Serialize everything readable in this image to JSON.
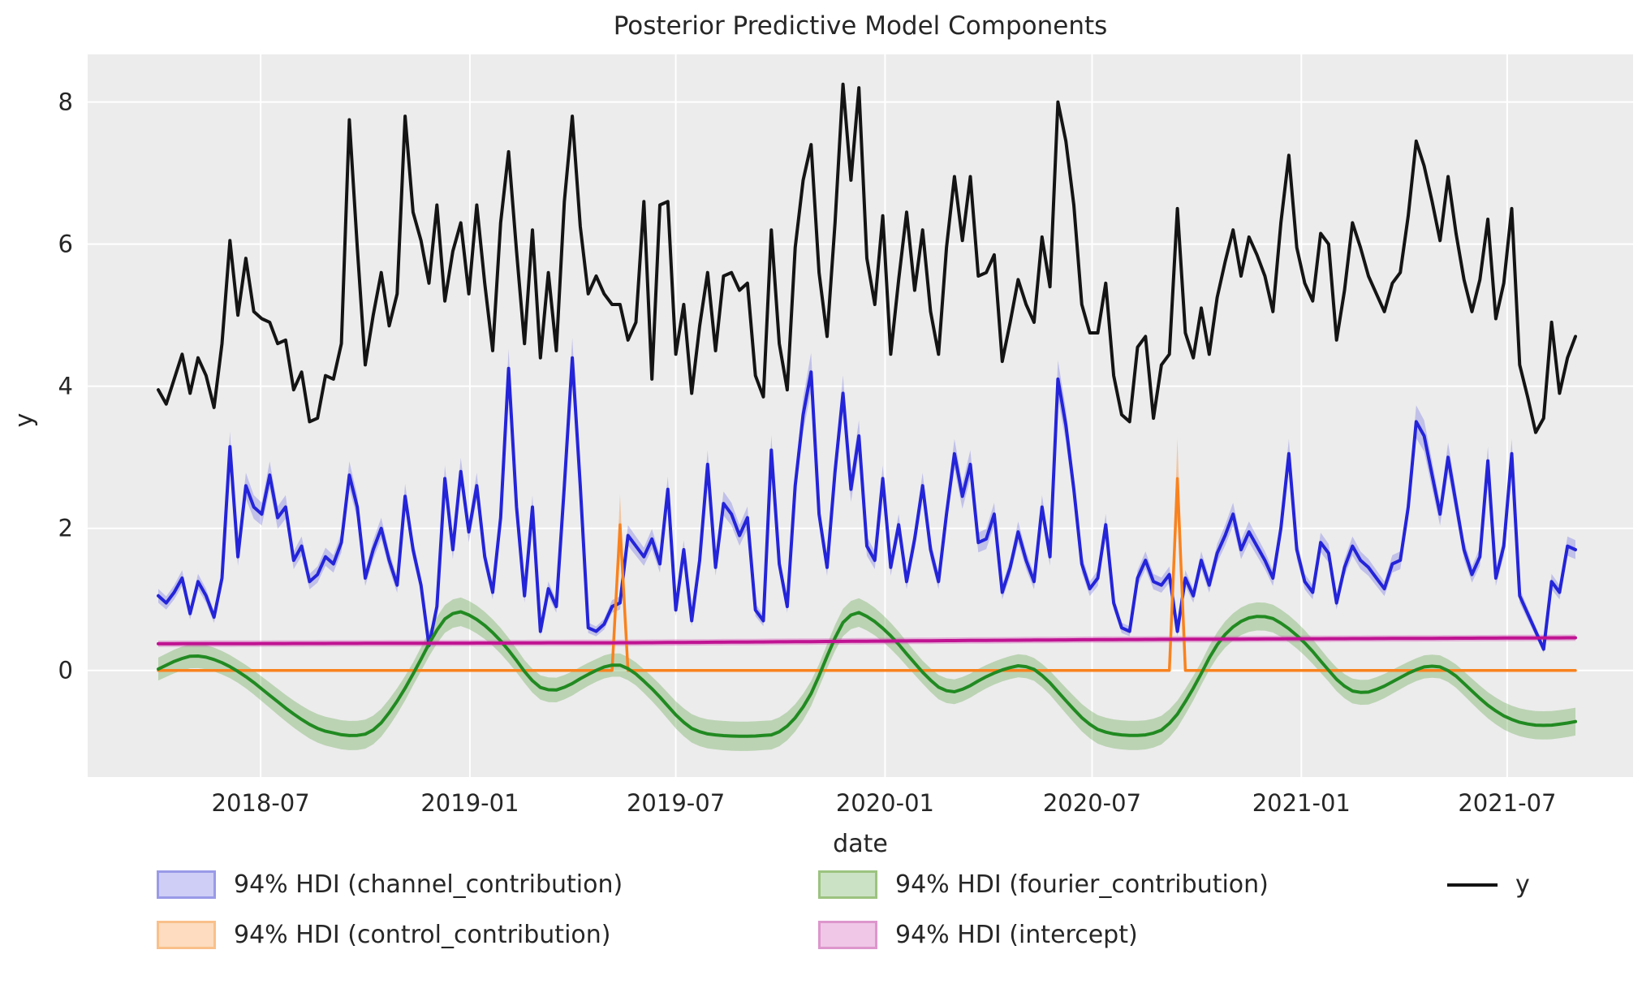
{
  "title": "Posterior Predictive Model Components",
  "axes": {
    "xlabel": "date",
    "ylabel": "y",
    "start_date": "2018-04-02",
    "n_weeks": 179,
    "x_tick_labels": [
      "2018-07",
      "2019-01",
      "2019-07",
      "2020-01",
      "2020-07",
      "2021-01",
      "2021-07"
    ],
    "x_tick_day_offsets": [
      90,
      274,
      455,
      639,
      821,
      1005,
      1186
    ],
    "y_ticks": [
      0,
      2,
      4,
      6,
      8
    ],
    "ylim": [
      -1.5,
      8.67
    ],
    "grid": true
  },
  "colors": {
    "plot_bg": "#ececec",
    "grid": "#ffffff",
    "text": "#262626",
    "y_line": "#141414",
    "channel_line": "#2424d9",
    "channel_band": "rgba(80,80,225,0.28)",
    "control_line": "#f9821e",
    "control_band": "rgba(249,130,30,0.35)",
    "fourier_line": "#218a21",
    "fourier_band": "rgba(85,160,60,0.32)",
    "intercept_line": "#c01392",
    "intercept_band": "rgba(205,70,175,0.35)"
  },
  "legend": {
    "items": [
      {
        "label": "94% HDI (channel_contribution)",
        "type": "patch",
        "fill": "rgba(80,80,225,0.28)",
        "edge": "#9a9ae8",
        "col": 0,
        "row": 0
      },
      {
        "label": "94% HDI (control_contribution)",
        "type": "patch",
        "fill": "rgba(249,130,30,0.28)",
        "edge": "#f9c08a",
        "col": 0,
        "row": 1
      },
      {
        "label": "94% HDI (fourier_contribution)",
        "type": "patch",
        "fill": "rgba(85,160,60,0.3)",
        "edge": "#9cc380",
        "col": 1,
        "row": 0
      },
      {
        "label": "94% HDI (intercept)",
        "type": "patch",
        "fill": "rgba(205,70,175,0.3)",
        "edge": "#dd96cc",
        "col": 1,
        "row": 1
      },
      {
        "label": "y",
        "type": "line",
        "stroke": "#141414",
        "col": 2,
        "row": 0
      }
    ]
  },
  "chart_data": {
    "type": "line",
    "title": "Posterior Predictive Model Components",
    "xlabel": "date",
    "ylabel": "y",
    "x_unit": "weeks since 2018-04-02",
    "series": [
      {
        "name": "y",
        "kind": "weekly",
        "color_key": "y_line",
        "line_width": 4,
        "values": [
          3.95,
          3.75,
          4.1,
          4.45,
          3.9,
          4.4,
          4.15,
          3.7,
          4.6,
          6.05,
          5.0,
          5.8,
          5.05,
          4.95,
          4.9,
          4.6,
          4.65,
          3.95,
          4.2,
          3.5,
          3.55,
          4.15,
          4.1,
          4.6,
          7.75,
          5.95,
          4.3,
          5.0,
          5.6,
          4.85,
          5.3,
          7.8,
          6.45,
          6.05,
          5.45,
          6.55,
          5.2,
          5.9,
          6.3,
          5.3,
          6.55,
          5.45,
          4.5,
          6.3,
          7.3,
          5.9,
          4.6,
          6.2,
          4.4,
          5.6,
          4.5,
          6.6,
          7.8,
          6.25,
          5.3,
          5.55,
          5.3,
          5.15,
          5.15,
          4.65,
          4.9,
          6.6,
          4.1,
          6.55,
          6.6,
          4.45,
          5.15,
          3.9,
          4.85,
          5.6,
          4.5,
          5.55,
          5.6,
          5.35,
          5.45,
          4.15,
          3.85,
          6.2,
          4.6,
          3.95,
          5.95,
          6.9,
          7.4,
          5.6,
          4.7,
          6.3,
          8.25,
          6.9,
          8.2,
          5.8,
          5.15,
          6.4,
          4.45,
          5.5,
          6.45,
          5.35,
          6.2,
          5.05,
          4.45,
          5.95,
          6.95,
          6.05,
          6.95,
          5.55,
          5.6,
          5.85,
          4.35,
          4.9,
          5.5,
          5.15,
          4.9,
          6.1,
          5.4,
          8.0,
          7.45,
          6.55,
          5.15,
          4.75,
          4.75,
          5.45,
          4.15,
          3.6,
          3.5,
          4.55,
          4.7,
          3.55,
          4.3,
          4.45,
          6.5,
          4.75,
          4.4,
          5.1,
          4.45,
          5.25,
          5.75,
          6.2,
          5.55,
          6.1,
          5.85,
          5.55,
          5.05,
          6.3,
          7.25,
          5.95,
          5.45,
          5.2,
          6.15,
          6.0,
          4.65,
          5.35,
          6.3,
          5.95,
          5.55,
          5.3,
          5.05,
          5.45,
          5.6,
          6.4,
          7.45,
          7.1,
          6.6,
          6.05,
          6.95,
          6.15,
          5.5,
          5.05,
          5.5,
          6.35,
          4.95,
          5.45,
          6.5,
          4.3,
          3.85,
          3.35,
          3.55,
          4.9,
          3.9,
          4.4,
          4.7
        ]
      },
      {
        "name": "channel_contribution",
        "kind": "weekly",
        "color_key": "channel_line",
        "band_key": "channel_band",
        "line_width": 4,
        "hdi_base": 0.04,
        "hdi_frac": 0.055,
        "values": [
          1.05,
          0.95,
          1.1,
          1.3,
          0.8,
          1.25,
          1.05,
          0.75,
          1.3,
          3.15,
          1.6,
          2.6,
          2.3,
          2.2,
          2.75,
          2.15,
          2.3,
          1.55,
          1.75,
          1.25,
          1.35,
          1.6,
          1.5,
          1.8,
          2.75,
          2.3,
          1.3,
          1.7,
          2.0,
          1.55,
          1.2,
          2.45,
          1.7,
          1.2,
          0.35,
          0.9,
          2.7,
          1.7,
          2.8,
          1.95,
          2.6,
          1.6,
          1.1,
          2.15,
          4.25,
          2.3,
          1.05,
          2.3,
          0.55,
          1.15,
          0.9,
          2.6,
          4.4,
          2.6,
          0.6,
          0.55,
          0.65,
          0.9,
          0.95,
          1.9,
          1.75,
          1.6,
          1.85,
          1.5,
          2.55,
          0.85,
          1.7,
          0.7,
          1.55,
          2.9,
          1.45,
          2.35,
          2.2,
          1.9,
          2.15,
          0.85,
          0.7,
          3.1,
          1.5,
          0.9,
          2.6,
          3.6,
          4.2,
          2.2,
          1.45,
          2.8,
          3.9,
          2.55,
          3.3,
          1.75,
          1.55,
          2.7,
          1.45,
          2.05,
          1.25,
          1.85,
          2.6,
          1.7,
          1.25,
          2.2,
          3.05,
          2.45,
          2.9,
          1.8,
          1.85,
          2.2,
          1.1,
          1.45,
          1.95,
          1.55,
          1.25,
          2.3,
          1.6,
          4.1,
          3.45,
          2.55,
          1.5,
          1.15,
          1.3,
          2.05,
          0.95,
          0.6,
          0.55,
          1.3,
          1.55,
          1.25,
          1.2,
          1.35,
          0.55,
          1.3,
          1.05,
          1.55,
          1.2,
          1.65,
          1.9,
          2.2,
          1.7,
          1.95,
          1.75,
          1.55,
          1.3,
          2.0,
          3.05,
          1.7,
          1.25,
          1.1,
          1.8,
          1.65,
          0.95,
          1.45,
          1.75,
          1.55,
          1.45,
          1.3,
          1.15,
          1.5,
          1.55,
          2.3,
          3.5,
          3.3,
          2.75,
          2.2,
          3.0,
          2.35,
          1.7,
          1.35,
          1.6,
          2.95,
          1.3,
          1.75,
          3.05,
          1.05,
          0.8,
          0.55,
          0.3,
          1.25,
          1.1,
          1.75,
          1.7
        ]
      },
      {
        "name": "control_contribution",
        "kind": "knots",
        "color_key": "control_line",
        "band_key": "control_band",
        "line_width": 3.5,
        "hdi_base": 0.0,
        "hdi_frac": 0.21,
        "smooth": false,
        "knots": [
          [
            0,
            0
          ],
          [
            57,
            0
          ],
          [
            58,
            2.05
          ],
          [
            59,
            0
          ],
          [
            127,
            0
          ],
          [
            128,
            2.7
          ],
          [
            129,
            0
          ],
          [
            178,
            0
          ]
        ],
        "events": [
          {
            "date": "2019-05-13",
            "week": 58,
            "mean": 2.05,
            "hdi": [
              1.65,
              2.55
            ]
          },
          {
            "date": "2020-09-14",
            "week": 128,
            "mean": 2.7,
            "hdi": [
              2.15,
              3.3
            ]
          }
        ]
      },
      {
        "name": "fourier_contribution",
        "kind": "knots",
        "color_key": "fourier_line",
        "band_key": "fourier_band",
        "line_width": 4,
        "hdi_base": 0.16,
        "hdi_frac": 0.05,
        "smooth": true,
        "knots": [
          [
            0,
            0.02
          ],
          [
            3,
            0.18
          ],
          [
            5,
            0.22
          ],
          [
            8,
            0.12
          ],
          [
            11,
            -0.08
          ],
          [
            14,
            -0.35
          ],
          [
            17,
            -0.62
          ],
          [
            20,
            -0.83
          ],
          [
            24,
            -0.93
          ],
          [
            27,
            -0.88
          ],
          [
            30,
            -0.45
          ],
          [
            33,
            0.15
          ],
          [
            35,
            0.6
          ],
          [
            37,
            0.85
          ],
          [
            39,
            0.8
          ],
          [
            42,
            0.55
          ],
          [
            45,
            0.15
          ],
          [
            47,
            -0.18
          ],
          [
            49,
            -0.3
          ],
          [
            51,
            -0.25
          ],
          [
            54,
            -0.05
          ],
          [
            57,
            0.1
          ],
          [
            59,
            0.05
          ],
          [
            62,
            -0.25
          ],
          [
            64,
            -0.5
          ],
          [
            66,
            -0.75
          ],
          [
            68,
            -0.88
          ],
          [
            71,
            -0.92
          ],
          [
            74,
            -0.93
          ],
          [
            78,
            -0.9
          ],
          [
            81,
            -0.55
          ],
          [
            83,
            -0.1
          ],
          [
            85,
            0.5
          ],
          [
            87,
            0.85
          ],
          [
            89,
            0.78
          ],
          [
            92,
            0.5
          ],
          [
            95,
            0.1
          ],
          [
            97,
            -0.15
          ],
          [
            99,
            -0.32
          ],
          [
            101,
            -0.28
          ],
          [
            104,
            -0.08
          ],
          [
            107,
            0.05
          ],
          [
            109,
            0.08
          ],
          [
            111,
            -0.05
          ],
          [
            113,
            -0.3
          ],
          [
            115,
            -0.55
          ],
          [
            117,
            -0.78
          ],
          [
            119,
            -0.88
          ],
          [
            122,
            -0.92
          ],
          [
            125,
            -0.9
          ],
          [
            127,
            -0.78
          ],
          [
            129,
            -0.45
          ],
          [
            131,
            -0.05
          ],
          [
            133,
            0.4
          ],
          [
            136,
            0.72
          ],
          [
            139,
            0.78
          ],
          [
            141,
            0.68
          ],
          [
            144,
            0.4
          ],
          [
            147,
            0.0
          ],
          [
            149,
            -0.25
          ],
          [
            151,
            -0.33
          ],
          [
            153,
            -0.28
          ],
          [
            156,
            -0.1
          ],
          [
            158,
            0.02
          ],
          [
            160,
            0.08
          ],
          [
            162,
            0.02
          ],
          [
            164,
            -0.18
          ],
          [
            166,
            -0.4
          ],
          [
            168,
            -0.58
          ],
          [
            170,
            -0.7
          ],
          [
            172,
            -0.76
          ],
          [
            174,
            -0.78
          ],
          [
            176,
            -0.76
          ],
          [
            178,
            -0.72
          ]
        ]
      },
      {
        "name": "intercept",
        "kind": "knots",
        "color_key": "intercept_line",
        "band_key": "intercept_band",
        "line_width": 4,
        "hdi_base": 0.045,
        "hdi_frac": 0.0,
        "smooth": true,
        "knots": [
          [
            0,
            0.375
          ],
          [
            60,
            0.39
          ],
          [
            120,
            0.435
          ],
          [
            178,
            0.46
          ]
        ]
      }
    ]
  }
}
